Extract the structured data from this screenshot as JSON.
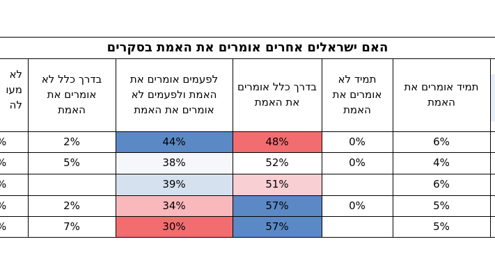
{
  "table": {
    "title": "האם ישראלים אחרים אומרים את האמת בסקרים",
    "columns": [
      {
        "key": "always_truth",
        "label": "תמיד אומרים את האמת"
      },
      {
        "key": "always_not",
        "label": "תמיד לא אומרים את האמת"
      },
      {
        "key": "usually_truth",
        "label": "בדרך כלל אומרים את האמת"
      },
      {
        "key": "sometimes",
        "label": "לפעמים אומרים את האמת ולפעמים לא אומרים את האמת"
      },
      {
        "key": "usually_not",
        "label": "בדרך כלל לא אומרים את האמת"
      },
      {
        "key": "partial",
        "label": "לא מעו לה"
      }
    ],
    "rows": [
      {
        "always_truth": "6%",
        "always_not": "0%",
        "usually_truth": "48%",
        "sometimes": "44%",
        "usually_not": "2%",
        "partial": "%"
      },
      {
        "always_truth": "4%",
        "always_not": "0%",
        "usually_truth": "52%",
        "sometimes": "38%",
        "usually_not": "5%",
        "partial": "%"
      },
      {
        "always_truth": "6%",
        "always_not": "",
        "usually_truth": "51%",
        "sometimes": "39%",
        "usually_not": "",
        "partial": "%"
      },
      {
        "always_truth": "5%",
        "always_not": "0%",
        "usually_truth": "57%",
        "sometimes": "34%",
        "usually_not": "2%",
        "partial": "%"
      },
      {
        "always_truth": "5%",
        "always_not": "",
        "usually_truth": "57%",
        "sometimes": "30%",
        "usually_not": "7%",
        "partial": "%"
      }
    ],
    "heat_colors": {
      "usually_truth": [
        "#f26d70",
        "#ffffff",
        "#f8cfd3",
        "#5b89c5",
        "#5b89c5"
      ],
      "sometimes": [
        "#5b89c5",
        "#f6f7fb",
        "#d6e1ef",
        "#f8b8bc",
        "#f26d70"
      ]
    },
    "partial_header_lines": [
      "לא",
      "מעו",
      "לה"
    ]
  }
}
